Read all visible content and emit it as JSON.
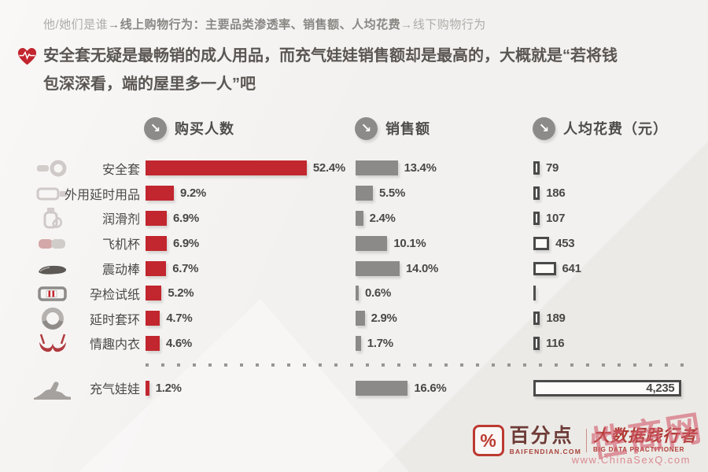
{
  "breadcrumb": {
    "pre": "他/她们是谁",
    "current": "→线上购物行为：主要品类渗透率、销售额、人均花费",
    "post": "→线下购物行为"
  },
  "insight": {
    "line1": "安全套无疑是最畅销的成人用品，而充气娃娃销售额却是最高的，大概就是“若将钱",
    "line2": "包深深看，端的屋里多一人”吧"
  },
  "icons": {
    "header_arrow": "↘",
    "percent_mark": "%"
  },
  "chart_data": {
    "type": "bar",
    "orientation": "horizontal",
    "columns": [
      "购买人数",
      "销售额",
      "人均花费（元）"
    ],
    "series": [
      {
        "name": "购买人数",
        "unit": "%",
        "color": "#c2262e"
      },
      {
        "name": "销售额",
        "unit": "%",
        "color": "#8c8a88"
      },
      {
        "name": "人均花费",
        "unit": "元",
        "color": "#4a4a4a"
      }
    ],
    "rows": [
      {
        "label": "安全套",
        "icon": "condom-icon",
        "buy": 52.4,
        "buy_label": "52.4%",
        "sale": 13.4,
        "sale_label": "13.4%",
        "spend": 79,
        "spend_label": "79"
      },
      {
        "label": "外用延时用品",
        "icon": "spray-bottle-icon",
        "buy": 9.2,
        "buy_label": "9.2%",
        "sale": 5.5,
        "sale_label": "5.5%",
        "spend": 186,
        "spend_label": "186"
      },
      {
        "label": "润滑剂",
        "icon": "lubricant-bottle-icon",
        "buy": 6.9,
        "buy_label": "6.9%",
        "sale": 2.4,
        "sale_label": "2.4%",
        "spend": 107,
        "spend_label": "107"
      },
      {
        "label": "飞机杯",
        "icon": "masturbator-cup-icon",
        "buy": 6.9,
        "buy_label": "6.9%",
        "sale": 10.1,
        "sale_label": "10.1%",
        "spend": 453,
        "spend_label": "453"
      },
      {
        "label": "震动棒",
        "icon": "vibrator-icon",
        "buy": 6.7,
        "buy_label": "6.7%",
        "sale": 14.0,
        "sale_label": "14.0%",
        "spend": 641,
        "spend_label": "641"
      },
      {
        "label": "孕检试纸",
        "icon": "pregnancy-test-icon",
        "buy": 5.2,
        "buy_label": "5.2%",
        "sale": 0.6,
        "sale_label": "0.6%",
        "spend": null,
        "spend_label": ""
      },
      {
        "label": "延时套环",
        "icon": "delay-ring-icon",
        "buy": 4.7,
        "buy_label": "4.7%",
        "sale": 2.9,
        "sale_label": "2.9%",
        "spend": 189,
        "spend_label": "189"
      },
      {
        "label": "情趣内衣",
        "icon": "bra-icon",
        "buy": 4.6,
        "buy_label": "4.6%",
        "sale": 1.7,
        "sale_label": "1.7%",
        "spend": 116,
        "spend_label": "116"
      },
      {
        "label": "充气娃娃",
        "icon": "doll-silhouette-icon",
        "buy": 1.2,
        "buy_label": "1.2%",
        "sale": 16.6,
        "sale_label": "16.6%",
        "spend": 4235,
        "spend_label": "4,235"
      }
    ]
  },
  "footer": {
    "brand_zh": "百分点",
    "brand_en": "BAIFENDIAN.COM",
    "tagline_zh": "大数据践行者",
    "tagline_en": "BIG DATA PRACTITIONER"
  },
  "watermark": {
    "name": "性商网",
    "url": "www.ChinaSexQ.com"
  }
}
